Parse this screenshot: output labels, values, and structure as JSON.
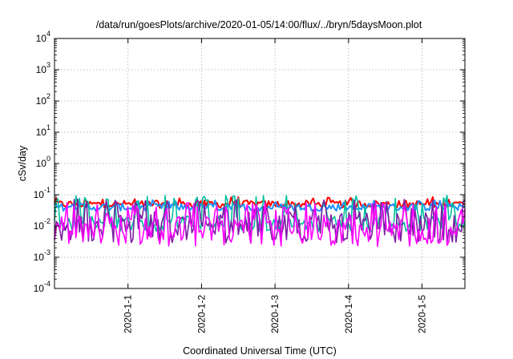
{
  "chart_data": {
    "type": "line",
    "title": "/data/run/goesPlots/archive/2020-01-05/14:00/flux/../bryn/5daysMoon.plot",
    "xlabel": "Coordinated Universal Time (UTC)",
    "ylabel": "cSv/day",
    "y_scale": "log",
    "ylim": [
      0.0001,
      10000
    ],
    "y_ticks": [
      {
        "base": "10",
        "exp": "-4"
      },
      {
        "base": "10",
        "exp": "-3"
      },
      {
        "base": "10",
        "exp": "-2"
      },
      {
        "base": "10",
        "exp": "-1"
      },
      {
        "base": "10",
        "exp": "0"
      },
      {
        "base": "10",
        "exp": "1"
      },
      {
        "base": "10",
        "exp": "2"
      },
      {
        "base": "10",
        "exp": "3"
      },
      {
        "base": "10",
        "exp": "4"
      }
    ],
    "xlim": [
      "2019-12-31T00:00",
      "2020-01-05T14:00"
    ],
    "x_ticks": [
      "2020-1-1",
      "2020-1-2",
      "2020-1-3",
      "2020-1-4",
      "2020-1-5"
    ],
    "grid": true,
    "series": [
      {
        "color": "#ff0000",
        "base_level": 0.05,
        "noise": "low"
      },
      {
        "color": "#1e90ff",
        "base_level": 0.04,
        "noise": "low"
      },
      {
        "color": "#00c0a0",
        "base_level": 0.012,
        "noise": "medium"
      },
      {
        "color": "#7b1fa2",
        "base_level": 0.009,
        "noise": "high"
      },
      {
        "color": "#ff00ff",
        "base_level": 0.007,
        "noise": "high"
      }
    ]
  }
}
